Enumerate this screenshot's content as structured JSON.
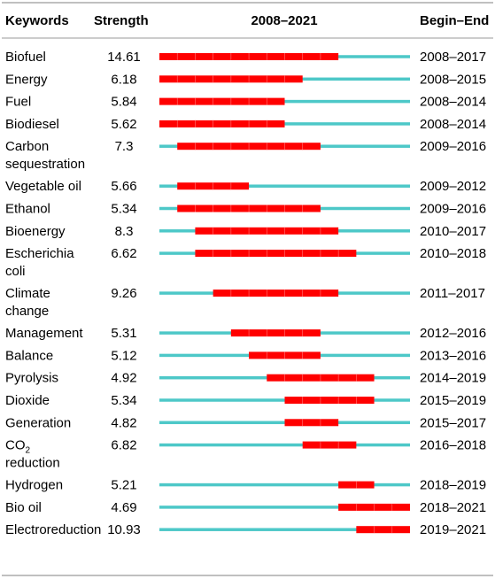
{
  "header": {
    "keywords": "Keywords",
    "strength": "Strength",
    "period": "2008–2021",
    "begin_end": "Begin–End"
  },
  "colors": {
    "burst": "#ff0000",
    "baseline": "#4dc8c8",
    "rule": "#9a9a9a"
  },
  "chart_data": {
    "type": "table",
    "year_range": [
      2008,
      2021
    ],
    "columns": [
      "Keywords",
      "Strength",
      "2008–2021",
      "Begin–End"
    ],
    "rows": [
      {
        "keyword": "Biofuel",
        "strength": "14.61",
        "begin": 2008,
        "end": 2017,
        "range": "2008–2017"
      },
      {
        "keyword": "Energy",
        "strength": "6.18",
        "begin": 2008,
        "end": 2015,
        "range": "2008–2015"
      },
      {
        "keyword": "Fuel",
        "strength": "5.84",
        "begin": 2008,
        "end": 2014,
        "range": "2008–2014"
      },
      {
        "keyword": "Biodiesel",
        "strength": "5.62",
        "begin": 2008,
        "end": 2014,
        "range": "2008–2014"
      },
      {
        "keyword": "Carbon sequestration",
        "lines": [
          "Carbon",
          "sequestration"
        ],
        "strength": "7.3",
        "begin": 2009,
        "end": 2016,
        "range": "2009–2016"
      },
      {
        "keyword": "Vegetable oil",
        "strength": "5.66",
        "begin": 2009,
        "end": 2012,
        "range": "2009–2012"
      },
      {
        "keyword": "Ethanol",
        "strength": "5.34",
        "begin": 2009,
        "end": 2016,
        "range": "2009–2016"
      },
      {
        "keyword": "Bioenergy",
        "strength": "8.3",
        "begin": 2010,
        "end": 2017,
        "range": "2010–2017"
      },
      {
        "keyword": "Escherichia coli",
        "lines": [
          "Escherichia",
          "coli"
        ],
        "strength": "6.62",
        "begin": 2010,
        "end": 2018,
        "range": "2010–2018"
      },
      {
        "keyword": "Climate change",
        "lines": [
          "Climate",
          "change"
        ],
        "strength": "9.26",
        "begin": 2011,
        "end": 2017,
        "range": "2011–2017"
      },
      {
        "keyword": "Management",
        "strength": "5.31",
        "begin": 2012,
        "end": 2016,
        "range": "2012–2016"
      },
      {
        "keyword": "Balance",
        "strength": "5.12",
        "begin": 2013,
        "end": 2016,
        "range": "2013–2016"
      },
      {
        "keyword": "Pyrolysis",
        "strength": "4.92",
        "begin": 2014,
        "end": 2019,
        "range": "2014–2019"
      },
      {
        "keyword": "Dioxide",
        "strength": "5.34",
        "begin": 2015,
        "end": 2019,
        "range": "2015–2019"
      },
      {
        "keyword": "Generation",
        "strength": "4.82",
        "begin": 2015,
        "end": 2017,
        "range": "2015–2017"
      },
      {
        "keyword": "CO2 reduction",
        "lines": [
          "CO2",
          "reduction"
        ],
        "strength": "6.82",
        "begin": 2016,
        "end": 2018,
        "range": "2016–2018"
      },
      {
        "keyword": "Hydrogen",
        "strength": "5.21",
        "begin": 2018,
        "end": 2019,
        "range": "2018–2019"
      },
      {
        "keyword": "Bio oil",
        "strength": "4.69",
        "begin": 2018,
        "end": 2021,
        "range": "2018–2021"
      },
      {
        "keyword": "Electroreduction",
        "strength": "10.93",
        "begin": 2019,
        "end": 2021,
        "range": "2019–2021"
      }
    ]
  }
}
